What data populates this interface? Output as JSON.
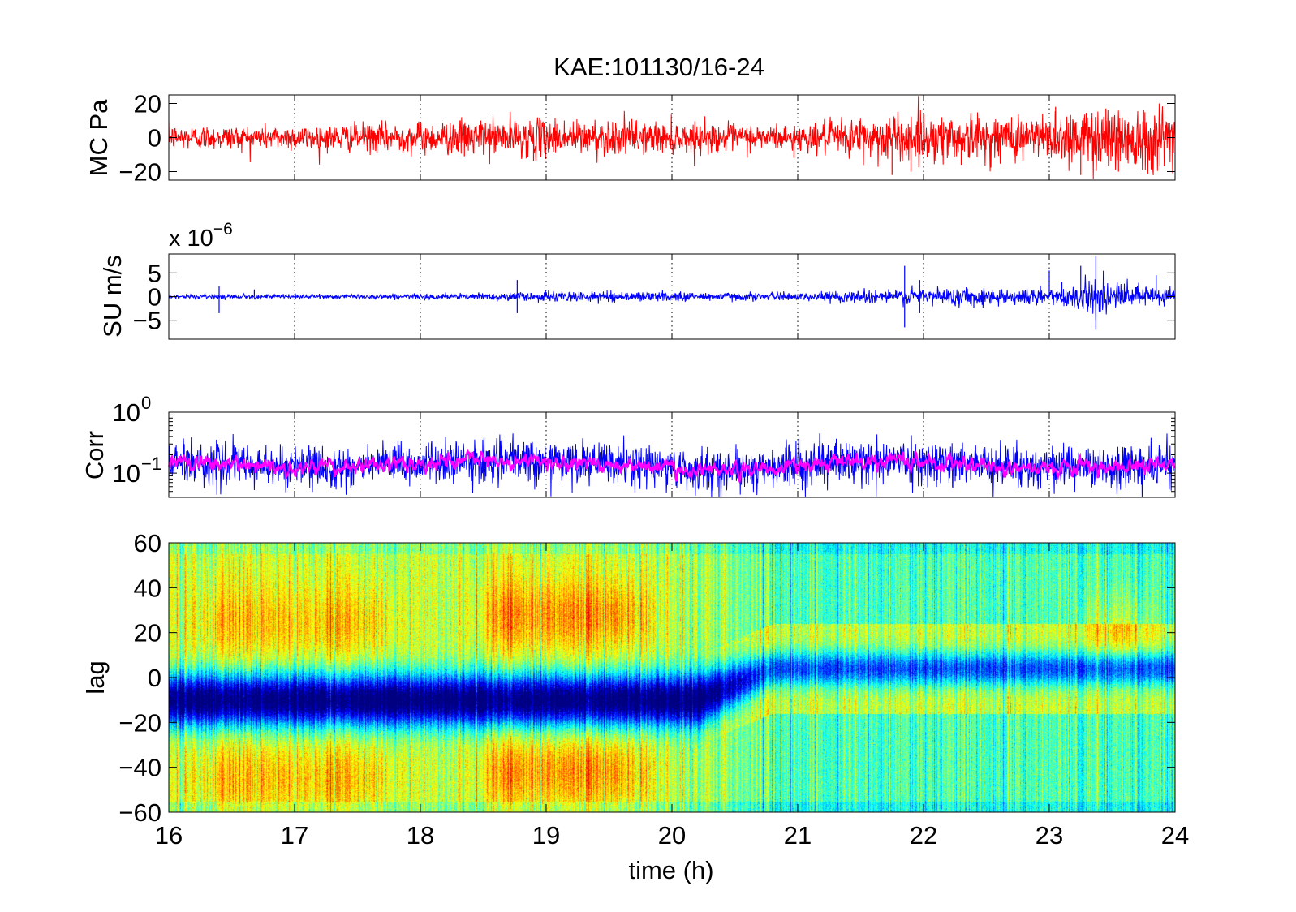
{
  "title": "KAE:101130/16-24",
  "colors": {
    "mc_line": "#ff0000",
    "su_line": "#0000ff",
    "corr_raw": "#0000ff",
    "corr_smooth": "#ff00ff",
    "axes": "#000000",
    "background": "#ffffff"
  },
  "chart_data": [
    {
      "id": "mc",
      "type": "line",
      "ylabel": "MC Pa",
      "ylim": [
        -25,
        25
      ],
      "yticks": [
        -20,
        0,
        20
      ],
      "ytick_labels": [
        "−20",
        "0",
        "20"
      ],
      "xlim": [
        16,
        24
      ],
      "grid": "x-dotted",
      "series": [
        {
          "color": "#ff0000",
          "kind": "noise",
          "amplitude_envelope": {
            "x": [
              16,
              17,
              18,
              18.5,
              19,
              19.5,
              20,
              21,
              21.5,
              22,
              22.5,
              23,
              23.5,
              24
            ],
            "y": [
              4,
              4,
              5,
              6,
              6,
              6,
              5,
              4,
              7,
              8,
              7,
              8,
              11,
              10
            ]
          },
          "spikes": [
            {
              "x": 21.75,
              "y": -22
            },
            {
              "x": 21.9,
              "y": -20
            },
            {
              "x": 22.0,
              "y": 14
            },
            {
              "x": 23.05,
              "y": 18
            },
            {
              "x": 23.25,
              "y": -22
            },
            {
              "x": 23.45,
              "y": 17
            },
            {
              "x": 23.55,
              "y": -20
            },
            {
              "x": 23.75,
              "y": 16
            },
            {
              "x": 22.3,
              "y": -16
            },
            {
              "x": 20.97,
              "y": -12
            },
            {
              "x": 18.9,
              "y": -14
            },
            {
              "x": 18.35,
              "y": -11
            },
            {
              "x": 23.88,
              "y": -17
            },
            {
              "x": 22.7,
              "y": 12
            }
          ]
        }
      ]
    },
    {
      "id": "su",
      "type": "line",
      "ylabel": "SU m/s",
      "exponent_label": "x 10",
      "exponent": "−6",
      "ylim": [
        -9,
        9
      ],
      "yticks": [
        -5,
        0,
        5
      ],
      "ytick_labels": [
        "−5",
        "0",
        "5"
      ],
      "xlim": [
        16,
        24
      ],
      "grid": "x-dotted",
      "series": [
        {
          "color": "#0000ff",
          "kind": "noise",
          "amplitude_envelope": {
            "x": [
              16,
              17,
              18,
              18.5,
              19,
              20,
              20.5,
              21,
              21.5,
              22,
              22.5,
              23,
              23.3,
              23.6,
              24
            ],
            "y": [
              0.25,
              0.25,
              0.3,
              0.4,
              0.6,
              0.55,
              0.5,
              0.4,
              0.8,
              1.0,
              1.0,
              1.0,
              1.8,
              1.5,
              1.2
            ]
          },
          "spikes": [
            {
              "x": 16.4,
              "y": -3.5
            },
            {
              "x": 16.4,
              "y": 2.2
            },
            {
              "x": 16.68,
              "y": 1.5
            },
            {
              "x": 18.77,
              "y": 3.5
            },
            {
              "x": 18.77,
              "y": -3.5
            },
            {
              "x": 21.85,
              "y": 6.5
            },
            {
              "x": 21.85,
              "y": -6.5
            },
            {
              "x": 22.4,
              "y": -2.4
            },
            {
              "x": 23.0,
              "y": 5.5
            },
            {
              "x": 23.25,
              "y": 6.5
            },
            {
              "x": 23.37,
              "y": 8.5
            },
            {
              "x": 23.37,
              "y": -7
            },
            {
              "x": 23.1,
              "y": 3.0
            },
            {
              "x": 23.85,
              "y": 4.5
            },
            {
              "x": 21.97,
              "y": 3.5
            },
            {
              "x": 21.97,
              "y": -3.5
            }
          ]
        }
      ]
    },
    {
      "id": "corr",
      "type": "line",
      "ylabel": "Corr",
      "yscale": "log",
      "ylim": [
        0.04,
        1
      ],
      "yticks": [
        0.1,
        1
      ],
      "ytick_labels": [
        {
          "base": "10",
          "exp": "−1"
        },
        {
          "base": "10",
          "exp": "0"
        }
      ],
      "xlim": [
        16,
        24
      ],
      "grid": "x-dotted",
      "series": [
        {
          "color": "#0000ff",
          "kind": "raw",
          "median": 0.14,
          "spread_decades": 0.3
        },
        {
          "color": "#ff00ff",
          "kind": "smoothed",
          "median": 0.14,
          "spread_decades": 0.1
        }
      ]
    },
    {
      "id": "lag",
      "type": "heatmap",
      "ylabel": "lag",
      "xlabel": "time (h)",
      "ylim": [
        -60,
        60
      ],
      "yticks": [
        -60,
        -40,
        -20,
        0,
        20,
        40,
        60
      ],
      "ytick_labels": [
        "−60",
        "−40",
        "−20",
        "0",
        "20",
        "40",
        "60"
      ],
      "xlim": [
        16,
        24
      ],
      "xticks": [
        16,
        17,
        18,
        19,
        20,
        21,
        22,
        23,
        24
      ],
      "xtick_labels": [
        "16",
        "17",
        "18",
        "19",
        "20",
        "21",
        "22",
        "23",
        "24"
      ],
      "colormap": "jet",
      "features": {
        "negative_band_center_before_20_5h": -10,
        "negative_band_center_after_20_5h": 4,
        "negative_band_halfwidth": 12,
        "positive_lobes": [
          {
            "x": [
              18.3,
              20.0
            ],
            "lag": 28,
            "strength": 0.9
          },
          {
            "x": [
              18.3,
              20.0
            ],
            "lag": -42,
            "strength": 0.85
          },
          {
            "x": [
              23.1,
              24.0
            ],
            "lag": 22,
            "strength": 0.7
          },
          {
            "x": [
              16.0,
              18.0
            ],
            "lag": 25,
            "strength": 0.6
          },
          {
            "x": [
              16.0,
              18.0
            ],
            "lag": -45,
            "strength": 0.6
          }
        ]
      }
    }
  ]
}
